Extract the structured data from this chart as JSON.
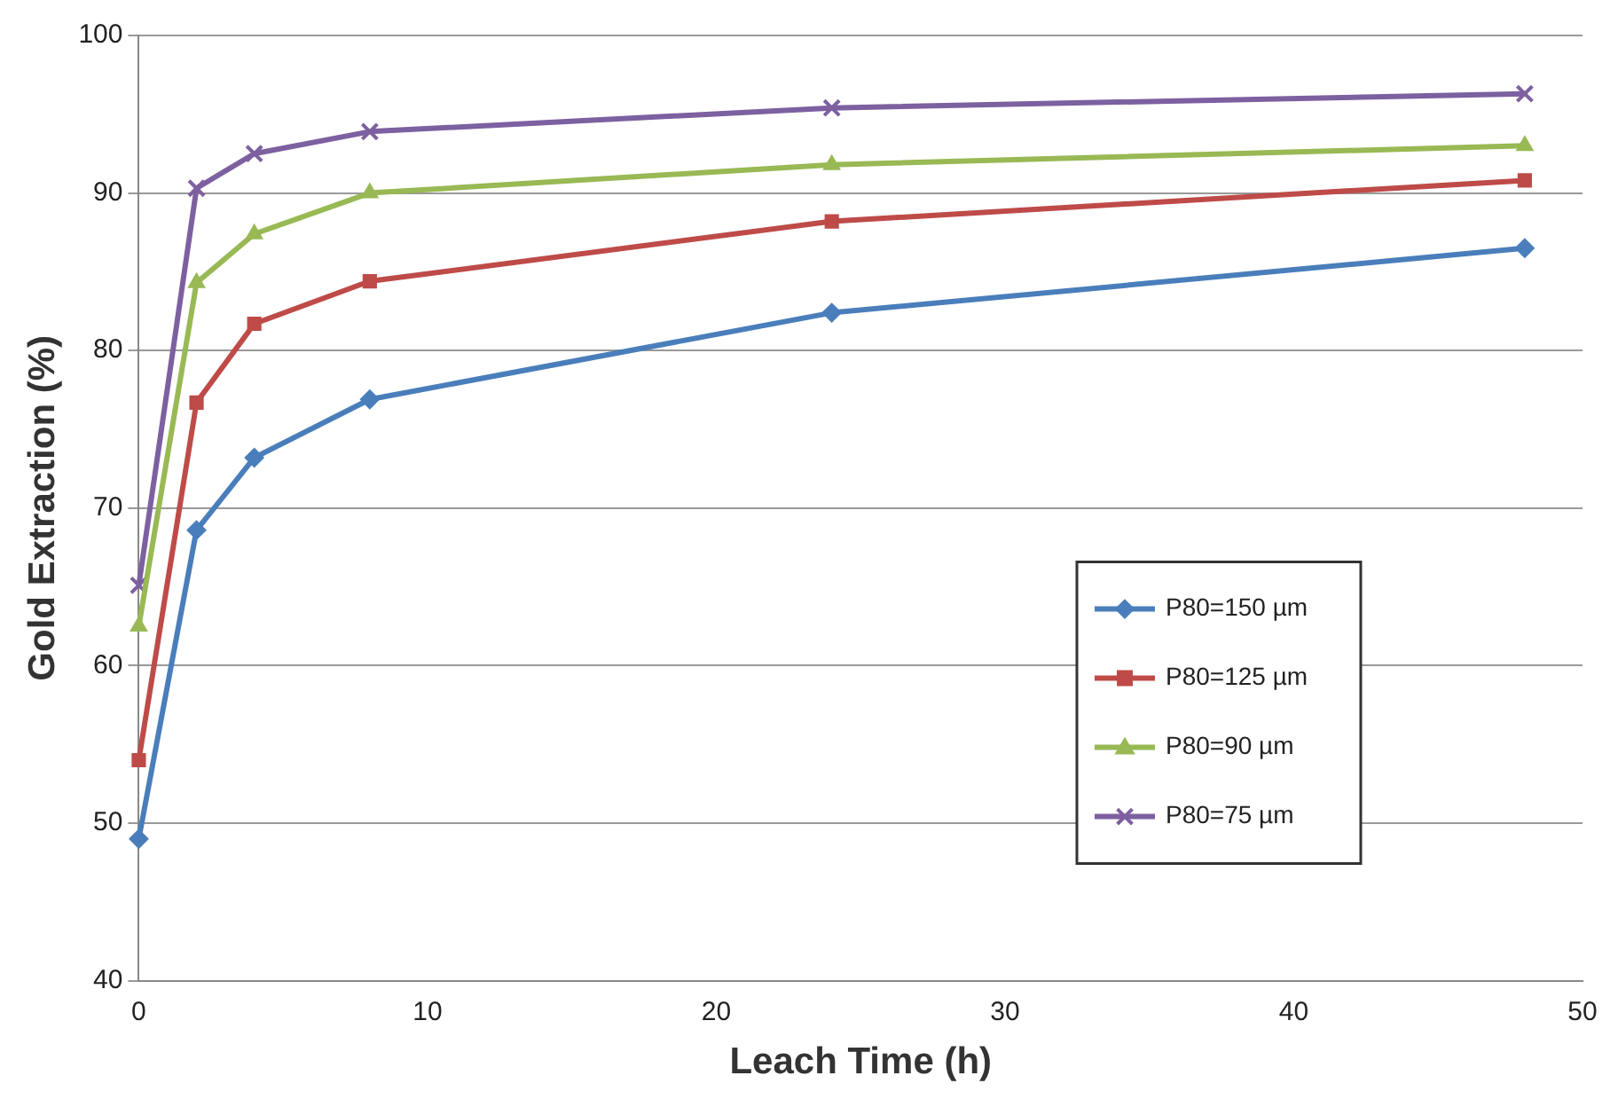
{
  "chart_data": {
    "type": "line",
    "xlabel": "Leach Time (h)",
    "ylabel": "Gold Extraction (%)",
    "x": [
      0,
      2,
      4,
      8,
      24,
      48
    ],
    "series": [
      {
        "name": "P80=150 µm",
        "color": "#4a7ebb",
        "marker": "diamond",
        "values": [
          49.0,
          68.6,
          73.2,
          76.9,
          82.4,
          86.5
        ]
      },
      {
        "name": "P80=125 µm",
        "color": "#be4b48",
        "marker": "square",
        "values": [
          54.0,
          76.7,
          81.7,
          84.4,
          88.2,
          90.8
        ]
      },
      {
        "name": "P80=90 µm",
        "color": "#98b954",
        "marker": "triangle",
        "values": [
          62.5,
          84.3,
          87.4,
          90.0,
          91.8,
          93.0
        ]
      },
      {
        "name": "P80=75 µm",
        "color": "#7d60a0",
        "marker": "cross",
        "values": [
          65.1,
          90.3,
          92.5,
          93.9,
          95.4,
          96.3
        ]
      }
    ],
    "xlim": [
      0,
      50
    ],
    "xticks": [
      0,
      10,
      20,
      30,
      40,
      50
    ],
    "ylim": [
      40,
      100
    ],
    "yticks": [
      40,
      50,
      60,
      70,
      80,
      90,
      100
    ],
    "grid": "y",
    "legend": "bottom right",
    "line_style": "solid"
  }
}
